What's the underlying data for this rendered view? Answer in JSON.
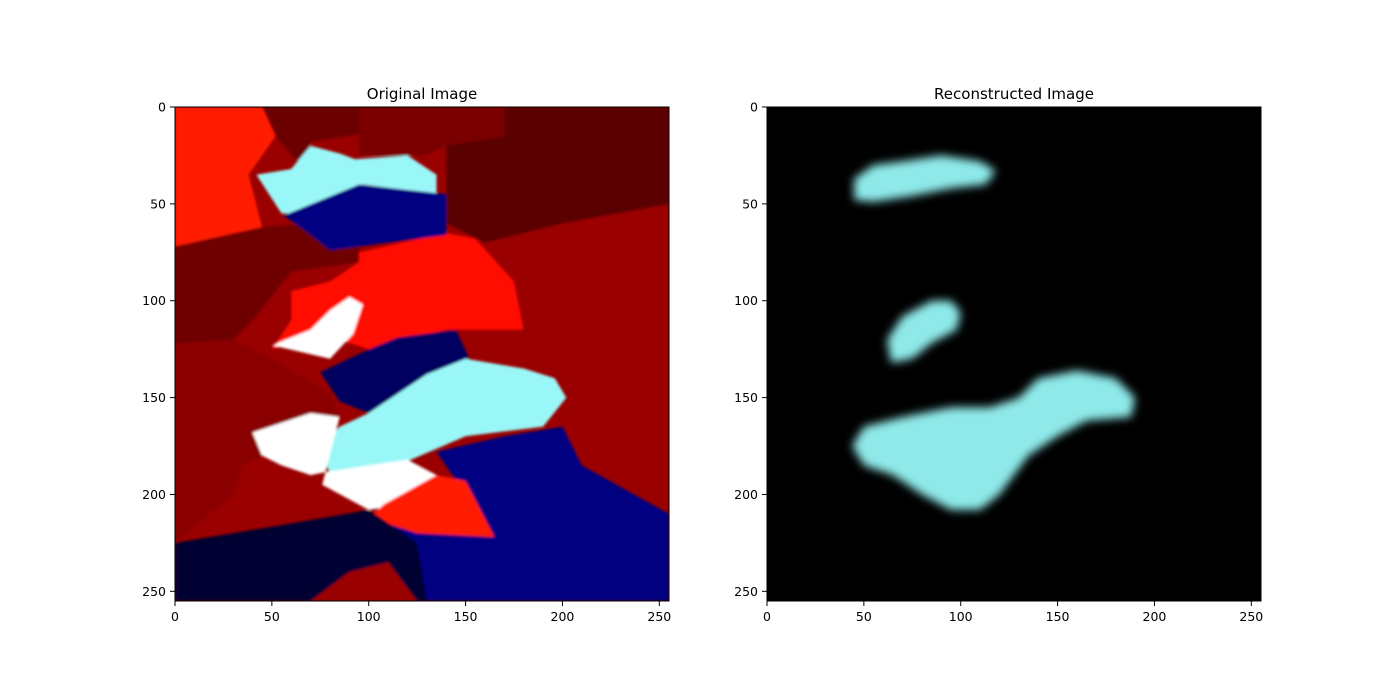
{
  "chart_data": [
    {
      "type": "heatmap",
      "title": "Original Image",
      "xlabel": "",
      "ylabel": "",
      "xlim": [
        0,
        255
      ],
      "ylim": [
        255,
        0
      ],
      "xticks": [
        0,
        50,
        100,
        150,
        200,
        250
      ],
      "yticks": [
        0,
        50,
        100,
        150,
        200,
        250
      ],
      "grid": false,
      "background": "#9a0000",
      "regions": [
        {
          "color": "#ff1a00",
          "points": [
            [
              0,
              0
            ],
            [
              45,
              0
            ],
            [
              52,
              15
            ],
            [
              38,
              35
            ],
            [
              45,
              62
            ],
            [
              0,
              72
            ]
          ]
        },
        {
          "color": "#6e0000",
          "points": [
            [
              0,
              72
            ],
            [
              45,
              62
            ],
            [
              70,
              60
            ],
            [
              95,
              60
            ],
            [
              95,
              80
            ],
            [
              60,
              85
            ],
            [
              40,
              110
            ],
            [
              30,
              120
            ],
            [
              0,
              122
            ]
          ]
        },
        {
          "color": "#8a0000",
          "points": [
            [
              0,
              122
            ],
            [
              30,
              120
            ],
            [
              50,
              130
            ],
            [
              80,
              148
            ],
            [
              85,
              160
            ],
            [
              55,
              175
            ],
            [
              35,
              185
            ],
            [
              30,
              200
            ],
            [
              0,
              225
            ]
          ]
        },
        {
          "color": "#6a0000",
          "points": [
            [
              45,
              0
            ],
            [
              95,
              0
            ],
            [
              95,
              14
            ],
            [
              70,
              18
            ],
            [
              65,
              30
            ],
            [
              52,
              15
            ]
          ]
        },
        {
          "color": "#7a0000",
          "points": [
            [
              95,
              0
            ],
            [
              170,
              0
            ],
            [
              170,
              15
            ],
            [
              140,
              20
            ],
            [
              130,
              25
            ],
            [
              95,
              25
            ]
          ]
        },
        {
          "color": "#5a0000",
          "points": [
            [
              170,
              0
            ],
            [
              255,
              0
            ],
            [
              255,
              50
            ],
            [
              200,
              60
            ],
            [
              160,
              70
            ],
            [
              140,
              60
            ],
            [
              140,
              20
            ],
            [
              170,
              15
            ]
          ]
        },
        {
          "color": "#ff0b00",
          "points": [
            [
              95,
              75
            ],
            [
              140,
              65
            ],
            [
              155,
              68
            ],
            [
              175,
              90
            ],
            [
              180,
              115
            ],
            [
              160,
              115
            ],
            [
              140,
              115
            ],
            [
              120,
              120
            ],
            [
              100,
              125
            ],
            [
              78,
              118
            ],
            [
              50,
              125
            ],
            [
              60,
              110
            ],
            [
              60,
              95
            ],
            [
              80,
              90
            ],
            [
              95,
              80
            ]
          ]
        },
        {
          "color": "#9af7f7",
          "points": [
            [
              70,
              20
            ],
            [
              85,
              24
            ],
            [
              93,
              27
            ],
            [
              120,
              25
            ],
            [
              135,
              35
            ],
            [
              135,
              45
            ],
            [
              97,
              40
            ],
            [
              70,
              55
            ],
            [
              55,
              55
            ],
            [
              42,
              35
            ],
            [
              60,
              32
            ]
          ]
        },
        {
          "color": "#000080",
          "points": [
            [
              56,
              56
            ],
            [
              95,
              40
            ],
            [
              140,
              45
            ],
            [
              140,
              66
            ],
            [
              110,
              70
            ],
            [
              80,
              74
            ],
            [
              66,
              63
            ]
          ]
        },
        {
          "color": "#ffffff",
          "points": [
            [
              50,
              123
            ],
            [
              70,
              115
            ],
            [
              80,
              105
            ],
            [
              90,
              98
            ],
            [
              97,
              102
            ],
            [
              92,
              117
            ],
            [
              80,
              130
            ]
          ]
        },
        {
          "color": "#000060",
          "points": [
            [
              75,
              137
            ],
            [
              100,
              125
            ],
            [
              115,
              119
            ],
            [
              145,
              115
            ],
            [
              152,
              130
            ],
            [
              130,
              140
            ],
            [
              115,
              155
            ],
            [
              100,
              158
            ],
            [
              85,
              152
            ]
          ]
        },
        {
          "color": "#9af7f7",
          "points": [
            [
              100,
              158
            ],
            [
              130,
              138
            ],
            [
              150,
              130
            ],
            [
              180,
              135
            ],
            [
              196,
              140
            ],
            [
              202,
              150
            ],
            [
              190,
              165
            ],
            [
              150,
              170
            ],
            [
              115,
              185
            ],
            [
              80,
              190
            ],
            [
              75,
              175
            ],
            [
              85,
              165
            ]
          ]
        },
        {
          "color": "#ffffff",
          "points": [
            [
              40,
              168
            ],
            [
              70,
              158
            ],
            [
              85,
              160
            ],
            [
              76,
              195
            ],
            [
              100,
              208
            ],
            [
              120,
              205
            ],
            [
              135,
              190
            ],
            [
              120,
              182
            ],
            [
              80,
              188
            ],
            [
              70,
              190
            ],
            [
              55,
              185
            ],
            [
              45,
              180
            ]
          ]
        },
        {
          "color": "#000080",
          "points": [
            [
              135,
              178
            ],
            [
              170,
              170
            ],
            [
              200,
              165
            ],
            [
              210,
              185
            ],
            [
              255,
              210
            ],
            [
              255,
              255
            ],
            [
              130,
              255
            ],
            [
              120,
              240
            ],
            [
              100,
              232
            ],
            [
              110,
              210
            ],
            [
              160,
              220
            ],
            [
              150,
              200
            ]
          ]
        },
        {
          "color": "#ff1a00",
          "points": [
            [
              108,
              205
            ],
            [
              135,
              190
            ],
            [
              150,
              193
            ],
            [
              165,
              222
            ],
            [
              125,
              220
            ],
            [
              100,
              212
            ]
          ]
        },
        {
          "color": "#000030",
          "points": [
            [
              0,
              225
            ],
            [
              60,
              215
            ],
            [
              100,
              208
            ],
            [
              125,
              225
            ],
            [
              130,
              255
            ],
            [
              0,
              255
            ]
          ]
        },
        {
          "color": "#9a0000",
          "points": [
            [
              70,
              255
            ],
            [
              90,
              240
            ],
            [
              110,
              235
            ],
            [
              125,
              255
            ]
          ]
        }
      ]
    },
    {
      "type": "heatmap",
      "title": "Reconstructed Image",
      "xlabel": "",
      "ylabel": "",
      "xlim": [
        0,
        255
      ],
      "ylim": [
        255,
        0
      ],
      "xticks": [
        0,
        50,
        100,
        150,
        200,
        250
      ],
      "yticks": [
        0,
        50,
        100,
        150,
        200,
        250
      ],
      "grid": false,
      "background": "#000000",
      "blob_color": "#8fe9e9",
      "blobs": [
        {
          "points": [
            [
              45,
              37
            ],
            [
              55,
              30
            ],
            [
              70,
              28
            ],
            [
              90,
              25
            ],
            [
              110,
              28
            ],
            [
              118,
              33
            ],
            [
              113,
              40
            ],
            [
              95,
              42
            ],
            [
              75,
              46
            ],
            [
              55,
              49
            ],
            [
              45,
              48
            ]
          ]
        },
        {
          "points": [
            [
              62,
              120
            ],
            [
              70,
              108
            ],
            [
              85,
              100
            ],
            [
              95,
              100
            ],
            [
              100,
              106
            ],
            [
              98,
              115
            ],
            [
              85,
              122
            ],
            [
              75,
              130
            ],
            [
              64,
              132
            ]
          ]
        },
        {
          "points": [
            [
              44,
              175
            ],
            [
              50,
              165
            ],
            [
              70,
              160
            ],
            [
              95,
              155
            ],
            [
              115,
              155
            ],
            [
              130,
              150
            ],
            [
              140,
              140
            ],
            [
              160,
              136
            ],
            [
              180,
              140
            ],
            [
              190,
              150
            ],
            [
              188,
              160
            ],
            [
              165,
              162
            ],
            [
              150,
              170
            ],
            [
              135,
              180
            ],
            [
              120,
              200
            ],
            [
              110,
              208
            ],
            [
              95,
              208
            ],
            [
              80,
              200
            ],
            [
              65,
              190
            ],
            [
              50,
              185
            ]
          ]
        }
      ]
    }
  ]
}
